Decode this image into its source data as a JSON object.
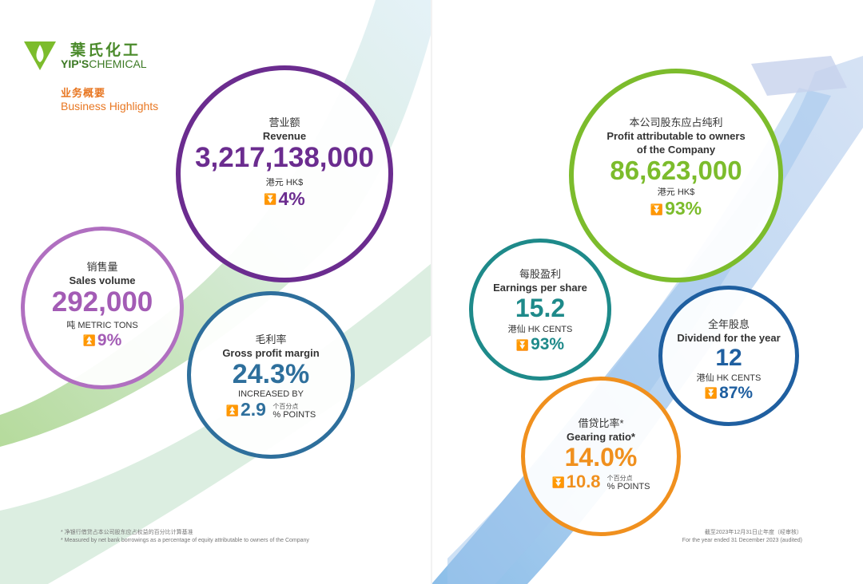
{
  "brand": {
    "name_cn": "葉氏化工",
    "name_en_bold": "YIP'S",
    "name_en_rest": "CHEMICAL"
  },
  "section": {
    "title_cn": "业务概要",
    "title_en": "Business Highlights"
  },
  "metrics": {
    "revenue": {
      "label_cn": "营业额",
      "label_en": "Revenue",
      "value": "3,217,138,000",
      "unit": "港元 HK$",
      "change": "4%",
      "direction": "down"
    },
    "sales_volume": {
      "label_cn": "销售量",
      "label_en": "Sales volume",
      "value": "292,000",
      "unit": "吨 METRIC TONS",
      "change": "9%",
      "direction": "up"
    },
    "gross_profit_margin": {
      "label_cn": "毛利率",
      "label_en": "Gross profit margin",
      "value": "24.3%",
      "increased_by": "INCREASED BY",
      "change": "2.9",
      "points_cn": "个百分点",
      "points_en": "% POINTS",
      "direction": "up"
    },
    "profit_attributable": {
      "label_cn": "本公司股东应占纯利",
      "label_en_line1": "Profit attributable to owners",
      "label_en_line2": "of the Company",
      "value": "86,623,000",
      "unit": "港元 HK$",
      "change": "93%",
      "direction": "down"
    },
    "eps": {
      "label_cn": "每股盈利",
      "label_en": "Earnings per share",
      "value": "15.2",
      "unit": "港仙 HK CENTS",
      "change": "93%",
      "direction": "down"
    },
    "dividend": {
      "label_cn": "全年股息",
      "label_en": "Dividend for the year",
      "value": "12",
      "unit": "港仙 HK CENTS",
      "change": "87%",
      "direction": "down"
    },
    "gearing": {
      "label_cn": "借贷比率*",
      "label_en": "Gearing ratio*",
      "value": "14.0%",
      "change": "10.8",
      "points_cn": "个百分点",
      "points_en": "% POINTS",
      "direction": "down"
    }
  },
  "footnote": {
    "cn": "* 净银行借贷占本公司股东应占权益的百分比计算基准",
    "en": "* Measured by net bank borrowings as a percentage of equity attributable to owners of the Company"
  },
  "period_note": {
    "cn": "截至2023年12月31日止年度（经审核）",
    "en": "For the year ended 31 December 2023 (audited)"
  },
  "colors": {
    "revenue": "#6b2c8f",
    "sales_volume": "#a35cb5",
    "gross_profit_margin": "#2e6f9c",
    "profit_attributable": "#7cbc2c",
    "eps": "#1e8a8a",
    "dividend": "#1f5fa0",
    "gearing": "#f0901e",
    "accent": "#e87722"
  }
}
